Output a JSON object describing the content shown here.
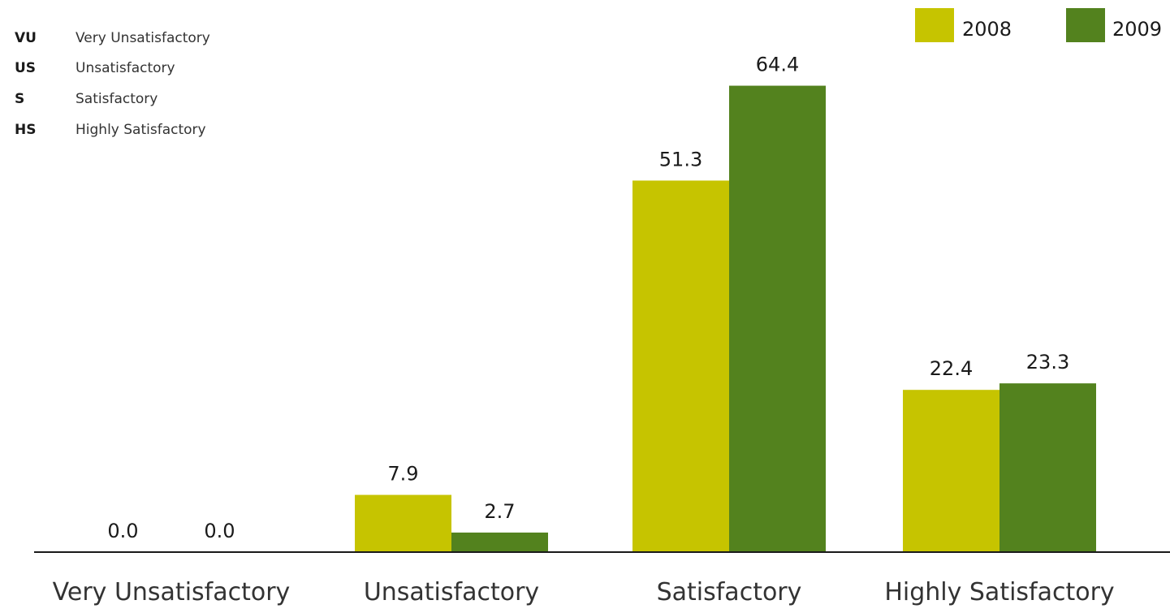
{
  "abbreviations": [
    {
      "code": "VU",
      "meaning": "Very Unsatisfactory"
    },
    {
      "code": "US",
      "meaning": "Unsatisfactory"
    },
    {
      "code": "S",
      "meaning": "Satisfactory"
    },
    {
      "code": "HS",
      "meaning": "Highly Satisfactory"
    }
  ],
  "colors": {
    "series_2008": "#c6c400",
    "series_2009": "#53821e",
    "axis": "#1a1a1a"
  },
  "chart_data": {
    "type": "bar",
    "categories": [
      "Very Unsatisfactory",
      "Unsatisfactory",
      "Satisfactory",
      "Highly Satisfactory"
    ],
    "series": [
      {
        "name": "2008",
        "values": [
          0.0,
          7.9,
          51.3,
          22.4
        ],
        "labels": [
          "0.0",
          "7.9",
          "51.3",
          "22.4"
        ]
      },
      {
        "name": "2009",
        "values": [
          0.0,
          2.7,
          64.4,
          23.3
        ],
        "labels": [
          "0.0",
          "2.7",
          "64.4",
          "23.3"
        ]
      }
    ],
    "title": "",
    "xlabel": "",
    "ylabel": "",
    "ylim": [
      0,
      70
    ],
    "grid": false,
    "legend_position": "top-right"
  }
}
